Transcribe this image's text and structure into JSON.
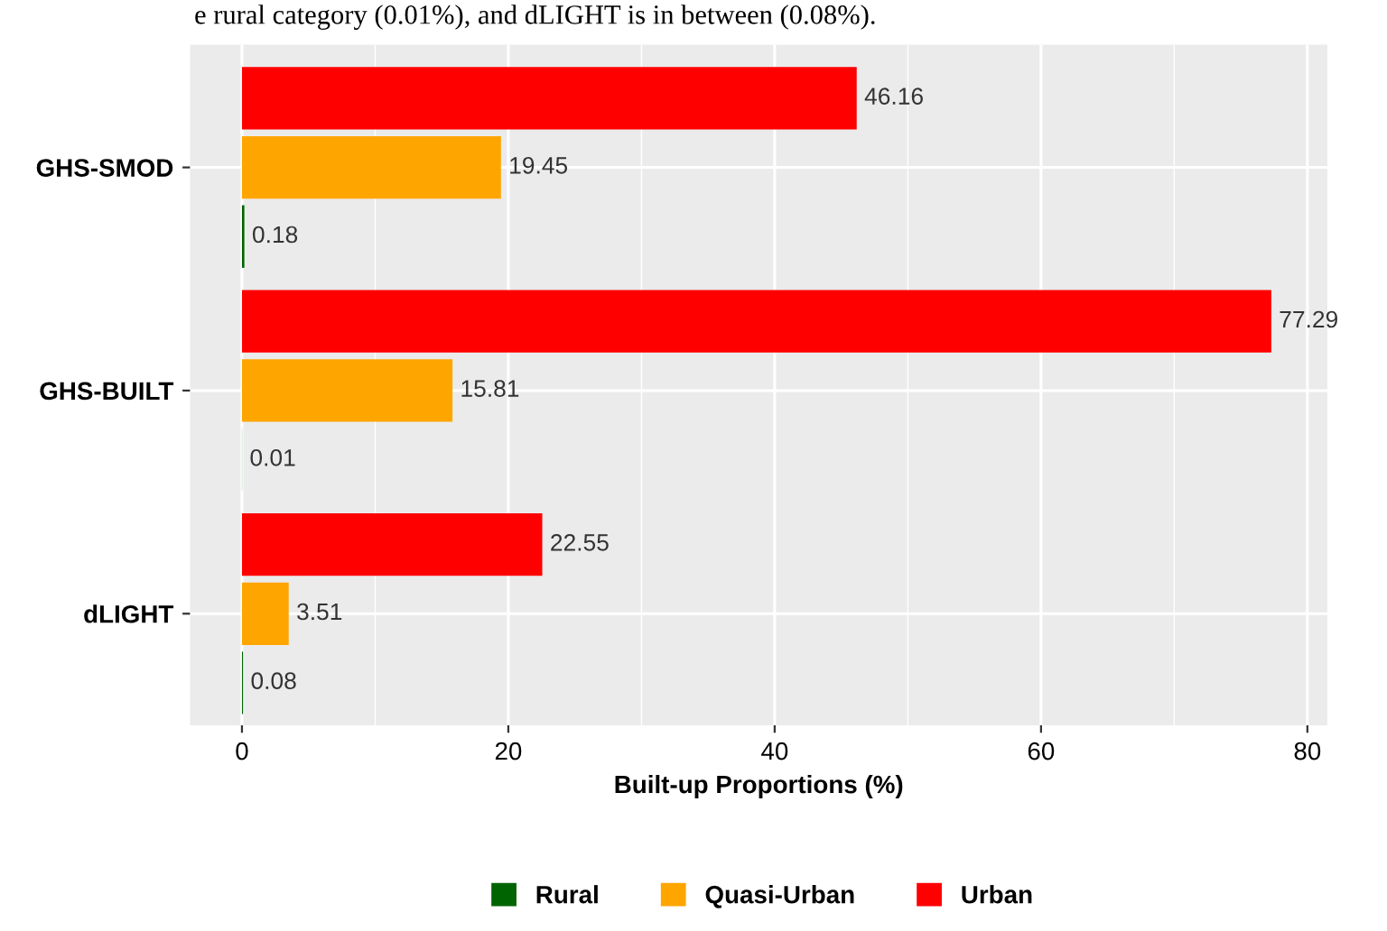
{
  "chart_data": {
    "type": "bar",
    "orientation": "horizontal",
    "categories": [
      "GHS-SMOD",
      "GHS-BUILT",
      "dLIGHT"
    ],
    "series": [
      {
        "name": "Rural",
        "color": "#006400",
        "values": [
          0.18,
          0.01,
          0.08
        ]
      },
      {
        "name": "Quasi-Urban",
        "color": "#ffa500",
        "values": [
          19.45,
          15.81,
          3.51
        ]
      },
      {
        "name": "Urban",
        "color": "#ff0000",
        "values": [
          46.16,
          77.29,
          22.55
        ]
      }
    ],
    "xlabel": "Built-up Proportions (%)",
    "xlim": [
      -3.9,
      81.5
    ],
    "xticks": [
      0,
      20,
      40,
      60,
      80
    ],
    "data_labels": true,
    "grid": true,
    "legend": "bottom",
    "annotations": [
      "e rural category (0.01%), and dLIGHT is in between (0.08%)."
    ]
  }
}
